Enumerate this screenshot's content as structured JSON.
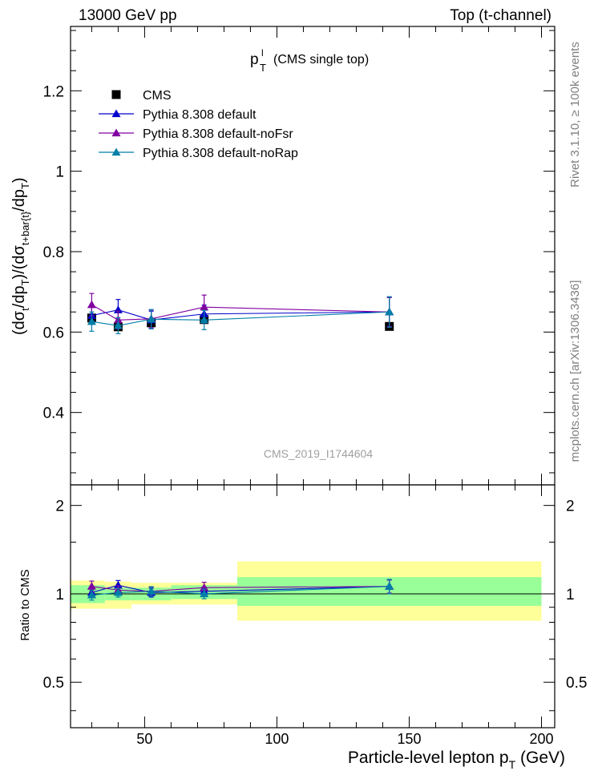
{
  "header": {
    "left": "13000 GeV pp",
    "right": "Top (t-channel)"
  },
  "side_labels": {
    "rivet": "Rivet 3.1.10, ≥ 100k events",
    "mcplots": "mcplots.cern.ch [arXiv:1306.3436]"
  },
  "plot_title": {
    "main": "p",
    "sup": "l",
    "sub": "T",
    "suffix": "(CMS single top)"
  },
  "watermark": "CMS_2019_I1744604",
  "colors": {
    "data": "#000000",
    "default": "#0000cc",
    "noFsr": "#8000a0",
    "noRap": "#007fa8",
    "band_stat": "#99ff99",
    "band_total": "#ffff99"
  },
  "chart_data": [
    {
      "type": "scatter",
      "panel": "main",
      "ylabel": "(dσt/dpT)/(dσt+bar{t}/dpT)",
      "ylim": [
        0.22,
        1.36
      ],
      "xlim": [
        22,
        205
      ],
      "y_ticks": [
        "0.4",
        "0.6",
        "0.8",
        "1",
        "1.2"
      ],
      "legend_position": "top-left",
      "bins": [
        [
          22,
          35
        ],
        [
          35,
          45
        ],
        [
          45,
          60
        ],
        [
          60,
          85
        ],
        [
          85,
          200
        ]
      ],
      "x": [
        30,
        40,
        52.5,
        72.5,
        142.5
      ],
      "data": {
        "name": "CMS",
        "values": [
          0.635,
          0.613,
          0.623,
          0.631,
          0.614
        ]
      },
      "series": [
        {
          "name": "Pythia 8.308 default",
          "values": [
            0.641,
            0.655,
            0.63,
            0.645,
            0.65
          ],
          "err": [
            0.022,
            0.026,
            0.022,
            0.022,
            0.036
          ]
        },
        {
          "name": "Pythia 8.308 default-noFsr",
          "values": [
            0.668,
            0.63,
            0.633,
            0.662,
            0.65
          ],
          "err": [
            0.028,
            0.022,
            0.022,
            0.03,
            0.036
          ]
        },
        {
          "name": "Pythia 8.308 default-noRap",
          "values": [
            0.626,
            0.616,
            0.632,
            0.63,
            0.65
          ],
          "err": [
            0.024,
            0.02,
            0.024,
            0.024,
            0.038
          ]
        }
      ]
    },
    {
      "type": "scatter",
      "panel": "ratio",
      "ylabel": "Ratio to CMS",
      "ylim": [
        0.35,
        2.35
      ],
      "log_y": true,
      "y_ticks": [
        "0.5",
        "1",
        "2"
      ],
      "xlabel": "Particle-level lepton pT (GeV)",
      "x_ticks": [
        "50",
        "100",
        "150",
        "200"
      ],
      "band_stat": [
        [
          0.93,
          1.07
        ],
        [
          0.95,
          1.05
        ],
        [
          0.95,
          1.05
        ],
        [
          0.96,
          1.07
        ],
        [
          0.91,
          1.14
        ]
      ],
      "band_total": [
        [
          0.89,
          1.11
        ],
        [
          0.89,
          1.1
        ],
        [
          0.92,
          1.09
        ],
        [
          0.92,
          1.09
        ],
        [
          0.81,
          1.29
        ]
      ],
      "series": [
        {
          "name": "Pythia 8.308 default",
          "values": [
            1.01,
            1.07,
            1.01,
            1.02,
            1.06
          ],
          "err": [
            0.035,
            0.04,
            0.035,
            0.035,
            0.055
          ]
        },
        {
          "name": "Pythia 8.308 default-noFsr",
          "values": [
            1.06,
            1.03,
            1.02,
            1.05,
            1.06
          ],
          "err": [
            0.045,
            0.035,
            0.035,
            0.045,
            0.055
          ]
        },
        {
          "name": "Pythia 8.308 default-noRap",
          "values": [
            0.99,
            1.01,
            1.02,
            1.0,
            1.06
          ],
          "err": [
            0.038,
            0.035,
            0.038,
            0.038,
            0.06
          ]
        }
      ]
    }
  ]
}
